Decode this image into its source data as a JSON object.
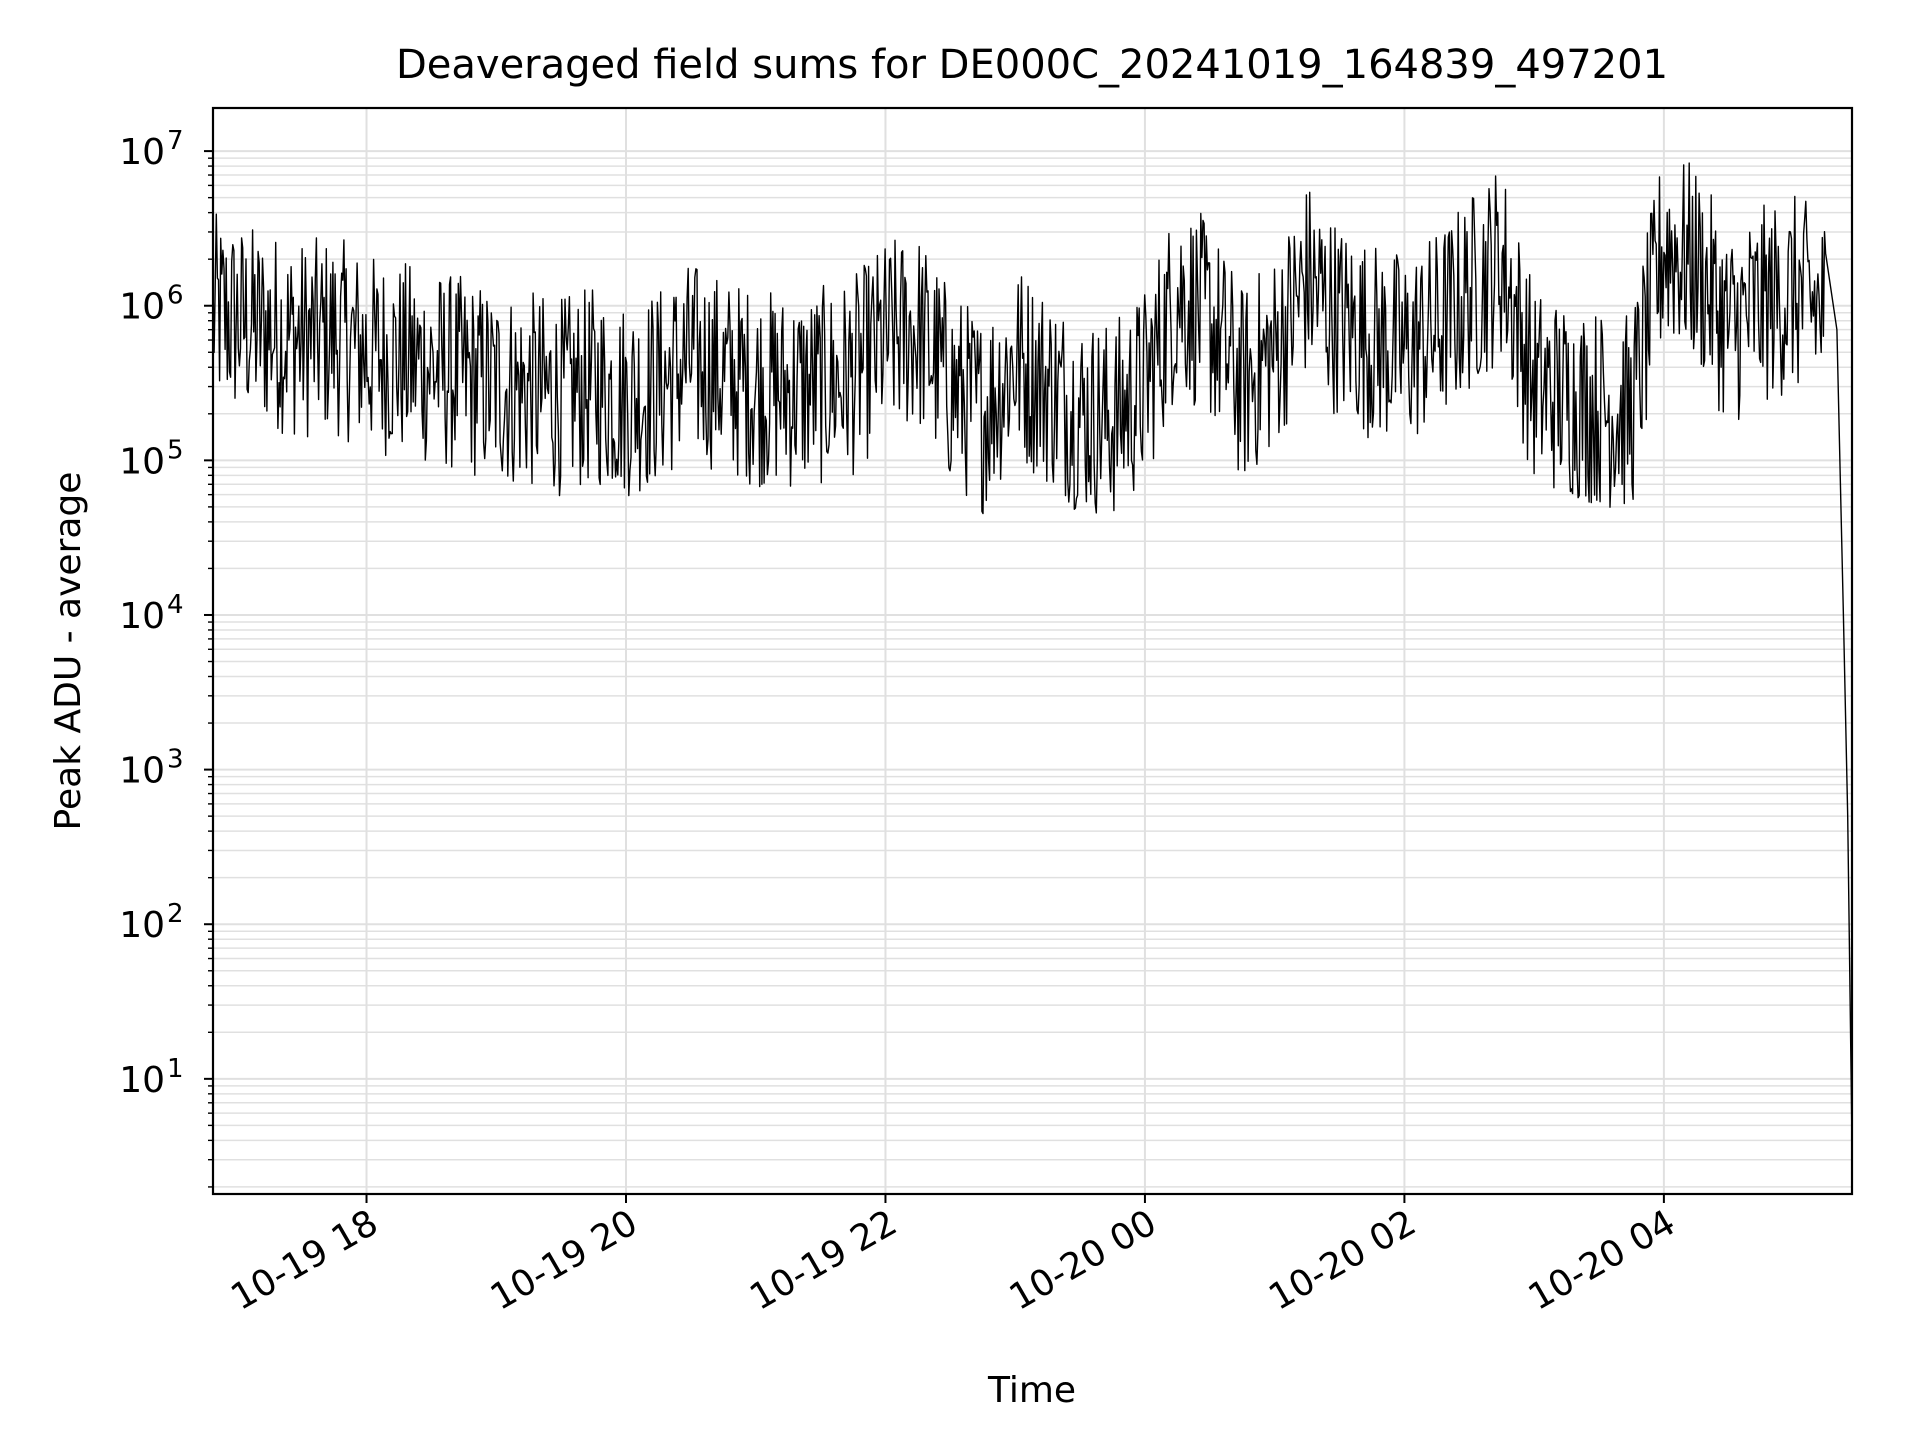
{
  "chart_data": {
    "type": "line",
    "title": "Deaveraged field sums for DE000C_20241019_164839_497201",
    "xlabel": "Time",
    "ylabel": "Peak ADU - average",
    "yscale": "log",
    "ylim": [
      1.8,
      19000000
    ],
    "xlim": [
      "2024-10-19T16:49",
      "2024-10-20T05:27"
    ],
    "grid": true,
    "line_color": "#000000",
    "grid_color": "#e0e0e0",
    "x_ticks": [
      {
        "value": "2024-10-19T18:00",
        "label": "10-19 18"
      },
      {
        "value": "2024-10-19T20:00",
        "label": "10-19 20"
      },
      {
        "value": "2024-10-19T22:00",
        "label": "10-19 22"
      },
      {
        "value": "2024-10-20T00:00",
        "label": "10-20 00"
      },
      {
        "value": "2024-10-20T02:00",
        "label": "10-20 02"
      },
      {
        "value": "2024-10-20T04:00",
        "label": "10-20 04"
      }
    ],
    "y_ticks": [
      {
        "value": 10,
        "base": "10",
        "exp": "1"
      },
      {
        "value": 100,
        "base": "10",
        "exp": "2"
      },
      {
        "value": 1000,
        "base": "10",
        "exp": "3"
      },
      {
        "value": 10000,
        "base": "10",
        "exp": "4"
      },
      {
        "value": 100000,
        "base": "10",
        "exp": "5"
      },
      {
        "value": 1000000,
        "base": "10",
        "exp": "6"
      },
      {
        "value": 10000000,
        "base": "10",
        "exp": "7"
      }
    ],
    "series": [
      {
        "x": [
          "2024-10-19T16:49",
          "2024-10-19T17:00",
          "2024-10-19T17:15",
          "2024-10-19T17:30",
          "2024-10-19T17:45",
          "2024-10-19T18:00",
          "2024-10-19T18:15",
          "2024-10-19T18:30",
          "2024-10-19T18:45",
          "2024-10-19T19:00",
          "2024-10-19T19:15",
          "2024-10-19T19:30",
          "2024-10-19T19:45",
          "2024-10-19T20:00",
          "2024-10-19T20:15",
          "2024-10-19T20:30",
          "2024-10-19T20:45",
          "2024-10-19T21:00",
          "2024-10-19T21:15",
          "2024-10-19T21:30",
          "2024-10-19T21:45",
          "2024-10-19T22:00",
          "2024-10-19T22:15",
          "2024-10-19T22:30",
          "2024-10-19T22:45",
          "2024-10-19T23:00",
          "2024-10-19T23:15",
          "2024-10-19T23:30",
          "2024-10-19T23:45",
          "2024-10-20T00:00",
          "2024-10-20T00:15",
          "2024-10-20T00:30",
          "2024-10-20T00:45",
          "2024-10-20T01:00",
          "2024-10-20T01:15",
          "2024-10-20T01:30",
          "2024-10-20T01:45",
          "2024-10-20T02:00",
          "2024-10-20T02:15",
          "2024-10-20T02:30",
          "2024-10-20T02:45",
          "2024-10-20T03:00",
          "2024-10-20T03:15",
          "2024-10-20T03:30",
          "2024-10-20T03:45",
          "2024-10-20T04:00",
          "2024-10-20T04:15",
          "2024-10-20T04:30",
          "2024-10-20T04:45",
          "2024-10-20T05:00",
          "2024-10-20T05:15",
          "2024-10-20T05:20",
          "2024-10-20T05:23",
          "2024-10-20T05:25",
          "2024-10-20T05:27"
        ],
        "y": [
          900000,
          800000,
          700000,
          600000,
          650000,
          500000,
          450000,
          400000,
          350000,
          300000,
          280000,
          260000,
          300000,
          250000,
          300000,
          450000,
          350000,
          300000,
          280000,
          300000,
          350000,
          600000,
          700000,
          300000,
          200000,
          450000,
          300000,
          200000,
          180000,
          300000,
          1200000,
          800000,
          300000,
          500000,
          1500000,
          800000,
          600000,
          500000,
          700000,
          1200000,
          2000000,
          300000,
          250000,
          220000,
          200000,
          2500000,
          1800000,
          700000,
          1000000,
          1200000,
          900000,
          700000,
          10000,
          500,
          3.8
        ]
      }
    ]
  }
}
